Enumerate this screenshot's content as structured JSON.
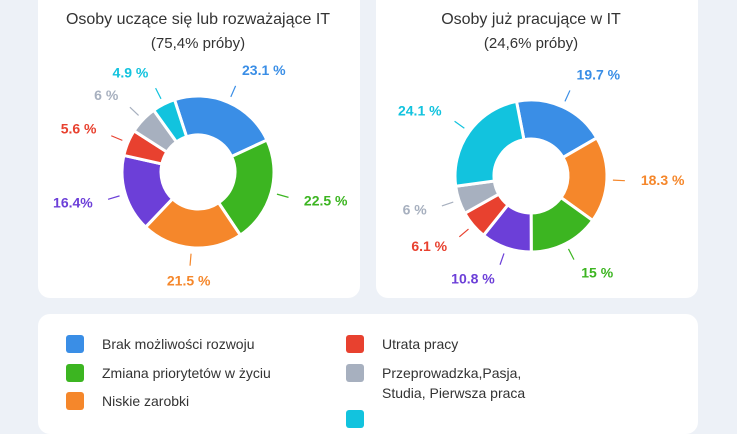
{
  "chart_data": [
    {
      "type": "donut",
      "title": "Osoby uczące się lub rozważające IT",
      "subtitle": "(75,4% próby)",
      "values": [
        23.1,
        22.5,
        21.5,
        16.4,
        5.6,
        6,
        4.9
      ],
      "value_labels": [
        "23.1 %",
        "22.5 %",
        "21.5 %",
        "16.4%",
        "5.6 %",
        "6 %",
        "4.9 %"
      ],
      "colors": [
        "#3a8ee6",
        "#3cb521",
        "#f5872b",
        "#6c3fd8",
        "#e8412f",
        "#a7b0bf",
        "#12c3de"
      ]
    },
    {
      "type": "donut",
      "title": "Osoby już pracujące w IT",
      "subtitle": "(24,6% próby)",
      "values": [
        19.7,
        18.3,
        15,
        10.8,
        6.1,
        6,
        24.1
      ],
      "value_labels": [
        "19.7 %",
        "18.3 %",
        "15 %",
        "10.8 %",
        "6.1 %",
        "6 %",
        "24.1 %"
      ],
      "colors": [
        "#3a8ee6",
        "#f5872b",
        "#3cb521",
        "#6c3fd8",
        "#e8412f",
        "#a7b0bf",
        "#12c3de"
      ]
    }
  ],
  "legend": [
    {
      "label": "Brak możliwości rozwoju",
      "color": "#3a8ee6"
    },
    {
      "label": "Zmiana priorytetów w życiu",
      "color": "#3cb521"
    },
    {
      "label": "Niskie zarobki",
      "color": "#f5872b"
    },
    {
      "label": "Utrata pracy",
      "color": "#e8412f"
    },
    {
      "label": "Przeprowadzka,Pasja, Studia, Pierwsza praca",
      "color": "#a7b0bf"
    }
  ]
}
